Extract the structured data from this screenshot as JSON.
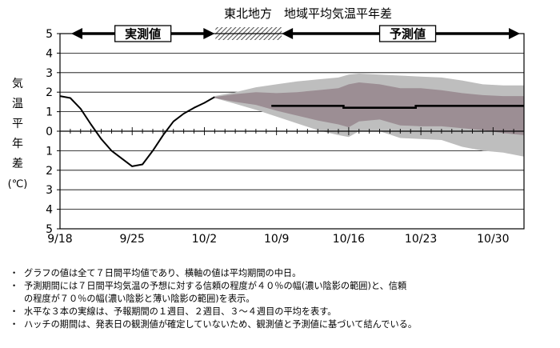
{
  "chart_data": {
    "type": "line",
    "title": "東北地方　地域平均気温平年差",
    "ylabel_chars": [
      "気",
      "温",
      "平",
      "年",
      "差",
      "(℃)"
    ],
    "ylim": [
      -5,
      5
    ],
    "y_ticks": [
      "5",
      "4",
      "3",
      "2",
      "1",
      "0",
      "1",
      "2",
      "3",
      "4",
      "5"
    ],
    "x_tick_labels": [
      {
        "day": 0,
        "label": "9/18"
      },
      {
        "day": 7,
        "label": "9/25"
      },
      {
        "day": 14,
        "label": "10/2"
      },
      {
        "day": 21,
        "label": "10/9"
      },
      {
        "day": 28,
        "label": "10/16"
      },
      {
        "day": 35,
        "label": "10/23"
      },
      {
        "day": 42,
        "label": "10/30"
      }
    ],
    "xlim_days": [
      0,
      45
    ],
    "period_labels": {
      "observed": "実測値",
      "forecast": "予測値"
    },
    "observed_series": [
      {
        "day": 0,
        "value": 1.8
      },
      {
        "day": 1,
        "value": 1.7
      },
      {
        "day": 2,
        "value": 1.15
      },
      {
        "day": 3,
        "value": 0.35
      },
      {
        "day": 4,
        "value": -0.4
      },
      {
        "day": 5,
        "value": -1.0
      },
      {
        "day": 6,
        "value": -1.4
      },
      {
        "day": 7,
        "value": -1.8
      },
      {
        "day": 8,
        "value": -1.7
      },
      {
        "day": 9,
        "value": -1.0
      },
      {
        "day": 10,
        "value": -0.2
      },
      {
        "day": 11,
        "value": 0.5
      },
      {
        "day": 12,
        "value": 0.9
      },
      {
        "day": 13,
        "value": 1.2
      },
      {
        "day": 14,
        "value": 1.45
      },
      {
        "day": 15,
        "value": 1.75
      }
    ],
    "forecast_means": [
      {
        "label": "1週目",
        "start_day": 20.5,
        "end_day": 27.5,
        "value": 1.3
      },
      {
        "label": "2週目",
        "start_day": 27.5,
        "end_day": 34.5,
        "value": 1.2
      },
      {
        "label": "3～4週目",
        "start_day": 34.5,
        "end_day": 45,
        "value": 1.3
      }
    ],
    "band70": {
      "days": [
        15,
        17,
        19,
        21,
        23,
        25,
        27,
        28,
        29,
        31,
        33,
        35,
        37,
        39,
        41,
        43,
        45
      ],
      "upper": [
        1.8,
        2.0,
        2.25,
        2.4,
        2.55,
        2.65,
        2.75,
        2.9,
        2.95,
        2.9,
        2.85,
        2.8,
        2.75,
        2.6,
        2.4,
        2.35,
        2.35
      ],
      "lower": [
        1.7,
        1.4,
        1.1,
        0.75,
        0.4,
        0.05,
        -0.2,
        -0.3,
        0.0,
        0.0,
        -0.35,
        -0.4,
        -0.45,
        -0.8,
        -1.0,
        -1.1,
        -1.3
      ]
    },
    "band40": {
      "days": [
        15,
        17,
        19,
        21,
        23,
        25,
        27,
        28,
        29,
        31,
        33,
        35,
        37,
        39,
        41,
        43,
        45
      ],
      "upper": [
        1.75,
        1.9,
        2.0,
        1.95,
        2.0,
        2.1,
        2.2,
        2.4,
        2.5,
        2.4,
        2.2,
        2.2,
        2.1,
        1.95,
        1.85,
        1.8,
        1.8
      ],
      "lower": [
        1.7,
        1.5,
        1.35,
        1.05,
        0.8,
        0.55,
        0.35,
        0.2,
        0.5,
        0.6,
        0.3,
        0.25,
        0.25,
        0.15,
        0.05,
        -0.1,
        -0.2
      ]
    },
    "hatch_period_days": [
      15,
      21.5
    ],
    "colors": {
      "band70": "#bebebe",
      "band40": "#9c8e94",
      "observed_line": "#000000",
      "forecast_line": "#000000"
    }
  },
  "notes": [
    {
      "bullet": "・",
      "lines": [
        "グラフの値は全て７日間平均値であり、横軸の値は平均期間の中日。"
      ]
    },
    {
      "bullet": "・",
      "lines": [
        "予測期間には７日間平均気温の予想に対する信頼の程度が４０％の幅(濃い陰影の範囲)と、信頼",
        "の程度が７０％の幅(濃い陰影と薄い陰影の範囲)を表示。"
      ]
    },
    {
      "bullet": "・",
      "lines": [
        "水平な３本の実線は、予報期間の１週目、２週目、３～４週目の平均を表す。"
      ]
    },
    {
      "bullet": "・",
      "lines": [
        "ハッチの期間は、発表日の観測値が確定していないため、観測値と予測値に基づいて結んでいる。"
      ]
    }
  ]
}
